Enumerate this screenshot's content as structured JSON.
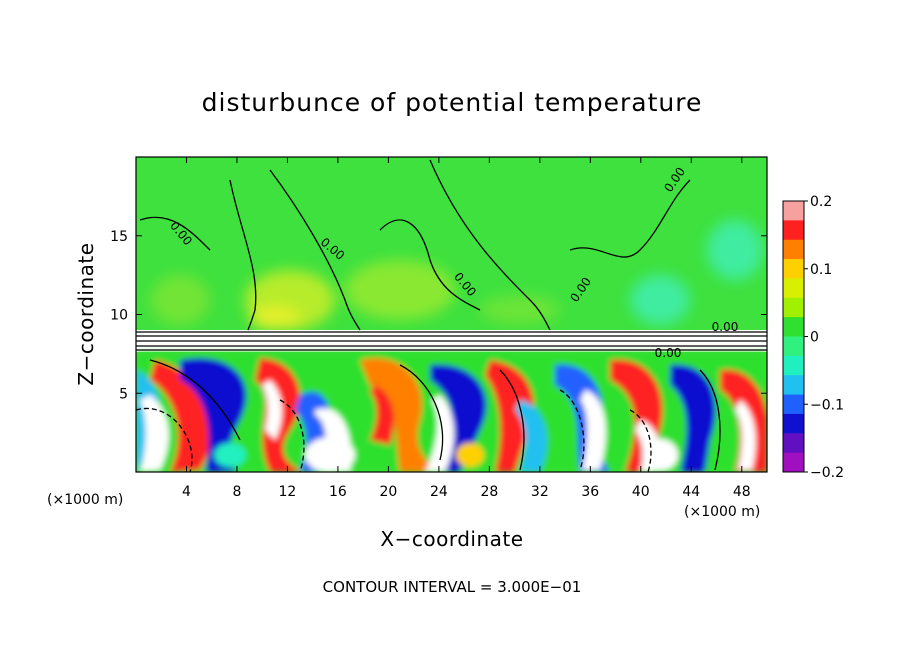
{
  "chart_data": {
    "type": "heatmap",
    "title": "disturbunce of potential temperature",
    "xlabel": "X−coordinate",
    "ylabel": "Z−coordinate",
    "x_unit": "(×1000 m)",
    "x_unit_right": "(×1000 m)",
    "x_ticks": [
      4,
      8,
      12,
      16,
      20,
      24,
      28,
      32,
      36,
      40,
      44,
      48
    ],
    "y_ticks": [
      5,
      10,
      15
    ],
    "xlim": [
      0,
      50
    ],
    "ylim": [
      0,
      20
    ],
    "colorbar": {
      "min": -0.2,
      "max": 0.2,
      "ticks": [
        0.2,
        0.1,
        0,
        -0.1,
        -0.2
      ],
      "tick_labels": [
        "0.2",
        "0.1",
        "0",
        "−0.1",
        "−0.2"
      ],
      "colors": [
        "#f7a0a0",
        "#ff2020",
        "#ff8000",
        "#ffd000",
        "#d8f000",
        "#a0f000",
        "#30e030",
        "#30f080",
        "#20f0c0",
        "#20c0f0",
        "#2060ff",
        "#1010d0",
        "#6010c0",
        "#a010c0"
      ]
    },
    "contour_labels": [
      "0.00",
      "0.00",
      "0.00",
      "0.00",
      "0.00",
      "0.00",
      "0.00"
    ],
    "contour_note": "CONTOUR INTERVAL = 3.000E−01"
  }
}
